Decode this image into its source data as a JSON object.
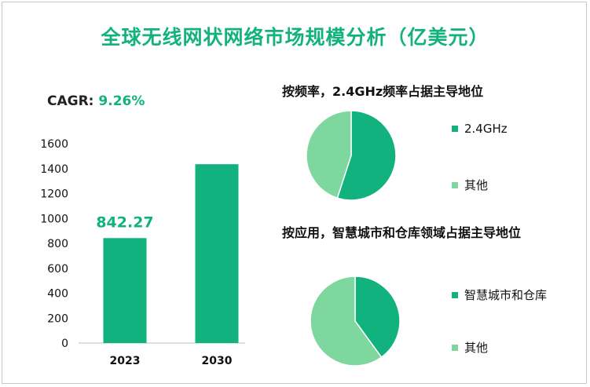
{
  "title": "全球无线网状网络市场规模分析（亿美元）",
  "cagr": {
    "label": "CAGR: ",
    "value": "9.26%"
  },
  "colors": {
    "accent": "#12b27f",
    "bar": "#12b27f",
    "pie_main": "#12b27f",
    "pie_other": "#7ed79e"
  },
  "chart_data": [
    {
      "type": "bar",
      "categories": [
        "2023",
        "2030"
      ],
      "values": [
        842.27,
        1435
      ],
      "data_labels": [
        "842.27",
        ""
      ],
      "ylim": [
        0,
        1600
      ],
      "yticks": [
        "0",
        "200",
        "400",
        "600",
        "800",
        "1000",
        "1200",
        "1400",
        "1600"
      ],
      "grid": false
    },
    {
      "type": "pie",
      "title": "按频率，2.4GHz频率占据主导地位",
      "labels": [
        "2.4GHz",
        "其他"
      ],
      "values": [
        55,
        45
      ],
      "legend": "right"
    },
    {
      "type": "pie",
      "title": "按应用，智慧城市和仓库领域占据主导地位",
      "labels": [
        "智慧城市和仓库",
        "其他"
      ],
      "values": [
        40,
        60
      ],
      "legend": "right"
    }
  ]
}
